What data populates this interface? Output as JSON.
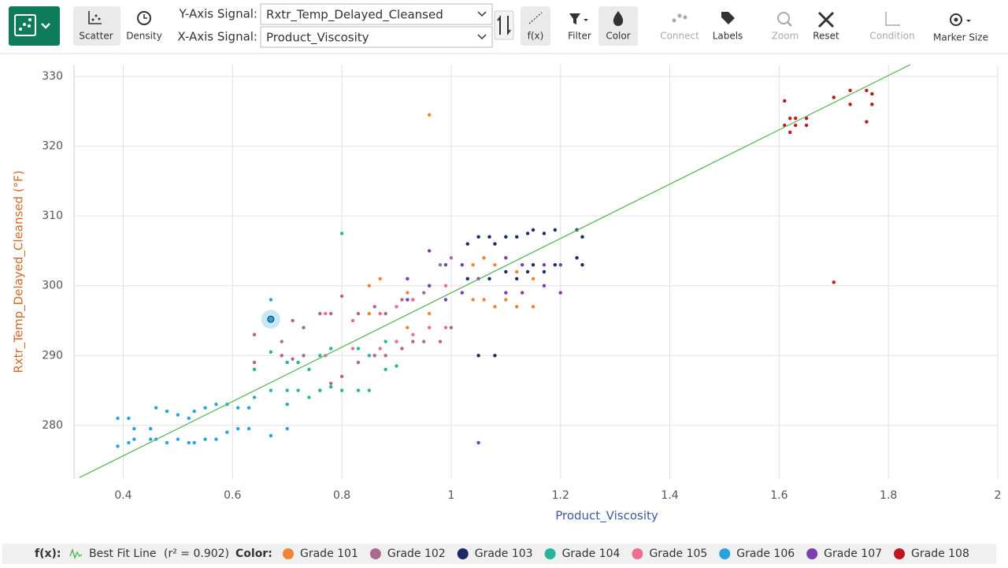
{
  "toolbar": {
    "scatter": "Scatter",
    "density": "Density",
    "y_signal_label": "Y-Axis Signal:",
    "y_signal": "Rxtr_Temp_Delayed_Cleansed",
    "x_signal_label": "X-Axis Signal:",
    "x_signal": "Product_Viscosity",
    "fx": "f(x)",
    "filter": "Filter",
    "color": "Color",
    "connect": "Connect",
    "labels": "Labels",
    "zoom": "Zoom",
    "reset": "Reset",
    "condition": "Condition",
    "marker_size": "Marker Size"
  },
  "chart_data": {
    "type": "scatter",
    "x_label": "Product_Viscosity",
    "y_label": "Rxtr_Temp_Delayed_Cleansed (°F)",
    "xlim": [
      0.31,
      2.0
    ],
    "ylim": [
      272.3,
      331.7
    ],
    "xticks": [
      0.4,
      0.6,
      0.8,
      1,
      1.2,
      1.4,
      1.6,
      1.8,
      2
    ],
    "yticks": [
      280,
      290,
      300,
      310,
      320,
      330
    ],
    "grid": true,
    "fx_label": "f(x):",
    "fit_label": "Best Fit Line",
    "fit_stat": "(r² = 0.902)",
    "color_label": "Color:",
    "fit": {
      "color": "#5cb85c",
      "x": [
        0.32,
        1.84
      ],
      "y": [
        272.5,
        331.7
      ]
    },
    "highlight": {
      "x": 0.67,
      "y": 295.2
    },
    "series": [
      {
        "name": "Grade 101",
        "color": "#f08436",
        "x": [
          0.85,
          0.85,
          0.87,
          0.87,
          0.92,
          0.92,
          0.96,
          0.96,
          1.04,
          1.04,
          1.06,
          1.06,
          1.08,
          1.08,
          1.1,
          1.1,
          1.12,
          1.12,
          1.15,
          1.15
        ],
        "y": [
          296,
          300,
          296,
          301,
          294,
          299,
          296,
          324.5,
          298,
          303,
          298,
          304,
          297,
          303,
          298,
          304,
          297,
          302,
          297,
          301
        ]
      },
      {
        "name": "Grade 102",
        "color": "#a86b8e",
        "x": [
          0.64,
          0.64,
          0.69,
          0.69,
          0.71,
          0.71,
          0.73,
          0.73,
          0.76,
          0.76,
          0.78,
          0.78,
          0.8,
          0.8,
          0.83,
          0.83,
          0.86,
          0.86,
          0.88,
          0.88,
          0.91,
          0.91,
          0.93,
          0.93,
          0.95,
          0.95,
          0.98,
          0.98,
          1.0,
          1.0
        ],
        "y": [
          289,
          293,
          290,
          292,
          289.5,
          295,
          290,
          294,
          285,
          296,
          286,
          296,
          287,
          298.5,
          289,
          296,
          290,
          297,
          290,
          296,
          291,
          298,
          292,
          298,
          292,
          299,
          292,
          303,
          294,
          304
        ]
      },
      {
        "name": "Grade 103",
        "color": "#1b2a63",
        "x": [
          1.03,
          1.03,
          1.05,
          1.05,
          1.07,
          1.07,
          1.08,
          1.08,
          1.1,
          1.1,
          1.12,
          1.12,
          1.14,
          1.14,
          1.15,
          1.15,
          1.17,
          1.17,
          1.19,
          1.19,
          1.23,
          1.23,
          1.24,
          1.24
        ],
        "y": [
          301,
          306,
          290,
          307,
          301,
          307,
          290,
          306,
          302,
          307,
          301,
          307,
          302,
          307.5,
          303,
          308,
          302,
          307.5,
          303,
          308,
          304,
          308,
          303,
          307
        ]
      },
      {
        "name": "Grade 104",
        "color": "#2ab59a",
        "x": [
          0.64,
          0.64,
          0.67,
          0.67,
          0.7,
          0.7,
          0.72,
          0.72,
          0.74,
          0.74,
          0.76,
          0.76,
          0.78,
          0.78,
          0.8,
          0.8,
          0.83,
          0.83,
          0.85,
          0.85,
          0.88,
          0.88,
          0.9,
          0.9
        ],
        "y": [
          284,
          288,
          285,
          290.5,
          285,
          289,
          285,
          289,
          284,
          288,
          285,
          290,
          285.5,
          291,
          285,
          307.5,
          285,
          291,
          285,
          290,
          288,
          292,
          288.5,
          292
        ]
      },
      {
        "name": "Grade 105",
        "color": "#ec6f91",
        "x": [
          0.77,
          0.77,
          0.82,
          0.82,
          0.87,
          0.87,
          0.9,
          0.9,
          0.93,
          0.93,
          0.96,
          0.96,
          0.99,
          0.99
        ],
        "y": [
          290,
          296,
          291,
          295,
          291,
          296,
          292,
          297,
          293,
          298,
          294,
          300,
          294,
          300
        ]
      },
      {
        "name": "Grade 106",
        "color": "#29a3dc",
        "x": [
          0.39,
          0.39,
          0.41,
          0.41,
          0.42,
          0.42,
          0.45,
          0.45,
          0.46,
          0.46,
          0.48,
          0.48,
          0.5,
          0.5,
          0.52,
          0.52,
          0.53,
          0.53,
          0.55,
          0.55,
          0.57,
          0.57,
          0.59,
          0.59,
          0.61,
          0.61,
          0.63,
          0.63,
          0.67,
          0.67,
          0.7,
          0.7
        ],
        "y": [
          277,
          281,
          277.5,
          281,
          278,
          279.5,
          278,
          279.5,
          278,
          282.5,
          277.5,
          282,
          278,
          281.5,
          277.5,
          281,
          277.5,
          282,
          278,
          282.5,
          278,
          283,
          279,
          283,
          279.5,
          282.5,
          279.5,
          282.5,
          278.5,
          298,
          279.5,
          283
        ]
      },
      {
        "name": "Grade 107",
        "color": "#7a3fb0",
        "x": [
          0.92,
          0.92,
          0.96,
          0.96,
          0.99,
          0.99,
          1.02,
          1.02,
          1.05,
          1.05,
          1.1,
          1.1,
          1.13,
          1.13,
          1.17,
          1.17,
          1.2,
          1.2
        ],
        "y": [
          298,
          301,
          300,
          305,
          298,
          303,
          299,
          303,
          277.5,
          301,
          299,
          304,
          299,
          303,
          300,
          303,
          299,
          303
        ]
      },
      {
        "name": "Grade 108",
        "color": "#c0161c",
        "x": [
          1.61,
          1.61,
          1.62,
          1.62,
          1.63,
          1.63,
          1.65,
          1.65,
          1.7,
          1.7,
          1.73,
          1.73,
          1.76,
          1.76,
          1.77,
          1.77
        ],
        "y": [
          323,
          326.5,
          322,
          324,
          323,
          324,
          323,
          324,
          300.5,
          327,
          326,
          328,
          323.5,
          328,
          326,
          327.5
        ]
      }
    ]
  }
}
